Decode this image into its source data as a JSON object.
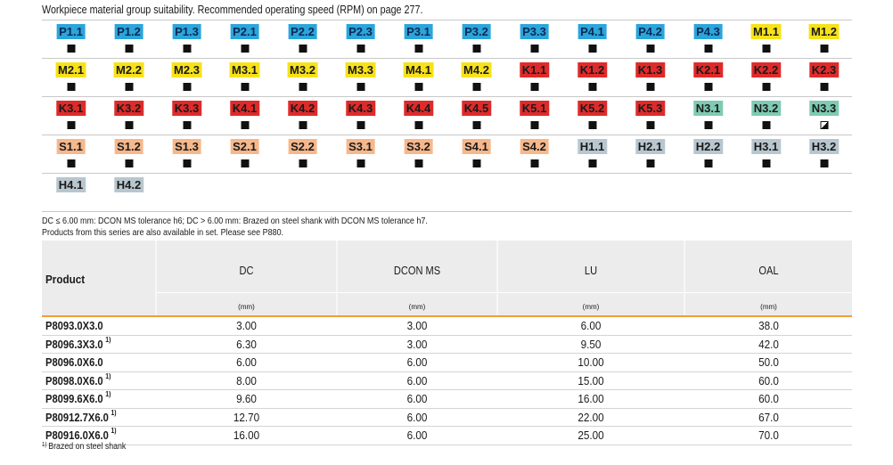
{
  "title": "Workpiece material group suitability. Recommended operating speed (RPM) on page 277.",
  "colors": {
    "blue": "#2ba5db",
    "yellow": "#f7e21a",
    "red": "#e02a2a",
    "green": "#7fcab3",
    "orange": "#f6b88b",
    "grey": "#b8c7cf",
    "accent_line": "#f39c3c"
  },
  "material_groups": [
    [
      {
        "label": "P1.1",
        "color": "blue",
        "mark": "full"
      },
      {
        "label": "P1.2",
        "color": "blue",
        "mark": "full"
      },
      {
        "label": "P1.3",
        "color": "blue",
        "mark": "full"
      },
      {
        "label": "P2.1",
        "color": "blue",
        "mark": "full"
      },
      {
        "label": "P2.2",
        "color": "blue",
        "mark": "full"
      },
      {
        "label": "P2.3",
        "color": "blue",
        "mark": "full"
      },
      {
        "label": "P3.1",
        "color": "blue",
        "mark": "full"
      },
      {
        "label": "P3.2",
        "color": "blue",
        "mark": "full"
      },
      {
        "label": "P3.3",
        "color": "blue",
        "mark": "full"
      },
      {
        "label": "P4.1",
        "color": "blue",
        "mark": "full"
      },
      {
        "label": "P4.2",
        "color": "blue",
        "mark": "full"
      },
      {
        "label": "P4.3",
        "color": "blue",
        "mark": "full"
      },
      {
        "label": "M1.1",
        "color": "yellow",
        "mark": "full"
      },
      {
        "label": "M1.2",
        "color": "yellow",
        "mark": "full"
      }
    ],
    [
      {
        "label": "M2.1",
        "color": "yellow",
        "mark": "full"
      },
      {
        "label": "M2.2",
        "color": "yellow",
        "mark": "full"
      },
      {
        "label": "M2.3",
        "color": "yellow",
        "mark": "full"
      },
      {
        "label": "M3.1",
        "color": "yellow",
        "mark": "full"
      },
      {
        "label": "M3.2",
        "color": "yellow",
        "mark": "full"
      },
      {
        "label": "M3.3",
        "color": "yellow",
        "mark": "full"
      },
      {
        "label": "M4.1",
        "color": "yellow",
        "mark": "full"
      },
      {
        "label": "M4.2",
        "color": "yellow",
        "mark": "full"
      },
      {
        "label": "K1.1",
        "color": "red",
        "mark": "full"
      },
      {
        "label": "K1.2",
        "color": "red",
        "mark": "full"
      },
      {
        "label": "K1.3",
        "color": "red",
        "mark": "full"
      },
      {
        "label": "K2.1",
        "color": "red",
        "mark": "full"
      },
      {
        "label": "K2.2",
        "color": "red",
        "mark": "full"
      },
      {
        "label": "K2.3",
        "color": "red",
        "mark": "full"
      }
    ],
    [
      {
        "label": "K3.1",
        "color": "red",
        "mark": "full"
      },
      {
        "label": "K3.2",
        "color": "red",
        "mark": "full"
      },
      {
        "label": "K3.3",
        "color": "red",
        "mark": "full"
      },
      {
        "label": "K4.1",
        "color": "red",
        "mark": "full"
      },
      {
        "label": "K4.2",
        "color": "red",
        "mark": "full"
      },
      {
        "label": "K4.3",
        "color": "red",
        "mark": "full"
      },
      {
        "label": "K4.4",
        "color": "red",
        "mark": "full"
      },
      {
        "label": "K4.5",
        "color": "red",
        "mark": "full"
      },
      {
        "label": "K5.1",
        "color": "red",
        "mark": "full"
      },
      {
        "label": "K5.2",
        "color": "red",
        "mark": "full"
      },
      {
        "label": "K5.3",
        "color": "red",
        "mark": "full"
      },
      {
        "label": "N3.1",
        "color": "green",
        "mark": "full"
      },
      {
        "label": "N3.2",
        "color": "green",
        "mark": "full"
      },
      {
        "label": "N3.3",
        "color": "green",
        "mark": "half"
      }
    ],
    [
      {
        "label": "S1.1",
        "color": "orange",
        "mark": "full"
      },
      {
        "label": "S1.2",
        "color": "orange",
        "mark": "full"
      },
      {
        "label": "S1.3",
        "color": "orange",
        "mark": "full"
      },
      {
        "label": "S2.1",
        "color": "orange",
        "mark": "full"
      },
      {
        "label": "S2.2",
        "color": "orange",
        "mark": "full"
      },
      {
        "label": "S3.1",
        "color": "orange",
        "mark": "full"
      },
      {
        "label": "S3.2",
        "color": "orange",
        "mark": "full"
      },
      {
        "label": "S4.1",
        "color": "orange",
        "mark": "full"
      },
      {
        "label": "S4.2",
        "color": "orange",
        "mark": "full"
      },
      {
        "label": "H1.1",
        "color": "grey",
        "mark": "full"
      },
      {
        "label": "H2.1",
        "color": "grey",
        "mark": "full"
      },
      {
        "label": "H2.2",
        "color": "grey",
        "mark": "full"
      },
      {
        "label": "H3.1",
        "color": "grey",
        "mark": "full"
      },
      {
        "label": "H3.2",
        "color": "grey",
        "mark": "full"
      }
    ],
    [
      {
        "label": "H4.1",
        "color": "grey",
        "mark": "none"
      },
      {
        "label": "H4.2",
        "color": "grey",
        "mark": "none"
      }
    ]
  ],
  "notes": {
    "line1": "DC ≤ 6.00 mm: DCON MS tolerance h6; DC > 6.00 mm: Brazed on steel shank with DCON MS tolerance h7.",
    "line2": "Products from this series are also available in set. Please see P880."
  },
  "table": {
    "product_header": "Product",
    "columns": [
      {
        "name": "DC",
        "unit": "(mm)"
      },
      {
        "name": "DCON MS",
        "unit": "(mm)"
      },
      {
        "name": "LU",
        "unit": "(mm)"
      },
      {
        "name": "OAL",
        "unit": "(mm)"
      }
    ],
    "rows": [
      {
        "product": "P8093.0X3.0",
        "footnote": "",
        "values": [
          "3.00",
          "3.00",
          "6.00",
          "38.0"
        ]
      },
      {
        "product": "P8096.3X3.0",
        "footnote": "1)",
        "values": [
          "6.30",
          "3.00",
          "9.50",
          "42.0"
        ]
      },
      {
        "product": "P8096.0X6.0",
        "footnote": "",
        "values": [
          "6.00",
          "6.00",
          "10.00",
          "50.0"
        ]
      },
      {
        "product": "P8098.0X6.0",
        "footnote": "1)",
        "values": [
          "8.00",
          "6.00",
          "15.00",
          "60.0"
        ]
      },
      {
        "product": "P8099.6X6.0",
        "footnote": "1)",
        "values": [
          "9.60",
          "6.00",
          "16.00",
          "60.0"
        ]
      },
      {
        "product": "P80912.7X6.0",
        "footnote": "1)",
        "values": [
          "12.70",
          "6.00",
          "22.00",
          "67.0"
        ]
      },
      {
        "product": "P80916.0X6.0",
        "footnote": "1)",
        "values": [
          "16.00",
          "6.00",
          "25.00",
          "70.0"
        ]
      }
    ]
  },
  "footnote": {
    "marker": "1)",
    "text": "Brazed on steel shank"
  }
}
